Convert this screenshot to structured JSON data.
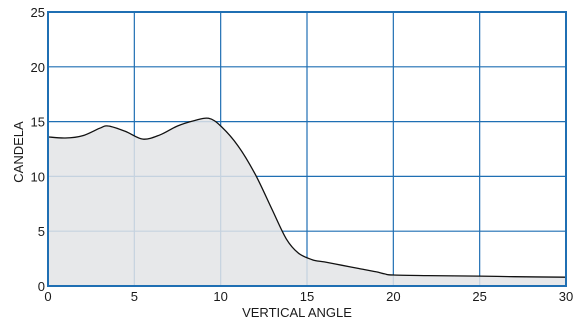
{
  "chart_data": {
    "type": "area",
    "xlabel": "VERTICAL ANGLE",
    "ylabel": "CANDELA",
    "xlim": [
      0,
      30
    ],
    "ylim": [
      0,
      25
    ],
    "xticks": [
      0,
      5,
      10,
      15,
      20,
      25,
      30
    ],
    "yticks": [
      0,
      5,
      10,
      15,
      20,
      25
    ],
    "grid": true,
    "legend": "none",
    "colors": {
      "grid": "#1f6fb3",
      "line": "#111111",
      "fill": "#e3e4e6"
    },
    "series": [
      {
        "x": [
          0,
          1,
          2,
          3,
          3.5,
          4.5,
          5.5,
          6.5,
          7.5,
          8.5,
          9.3,
          10,
          11,
          12,
          13,
          13.8,
          14.5,
          15.3,
          16,
          17,
          18,
          19,
          19.5,
          20,
          22,
          25,
          27,
          30
        ],
        "values": [
          13.6,
          13.5,
          13.7,
          14.4,
          14.6,
          14.1,
          13.4,
          13.8,
          14.6,
          15.1,
          15.3,
          14.6,
          12.8,
          10.2,
          6.9,
          4.3,
          3.0,
          2.4,
          2.2,
          1.9,
          1.6,
          1.3,
          1.1,
          1.0,
          0.95,
          0.9,
          0.85,
          0.8
        ]
      }
    ]
  }
}
